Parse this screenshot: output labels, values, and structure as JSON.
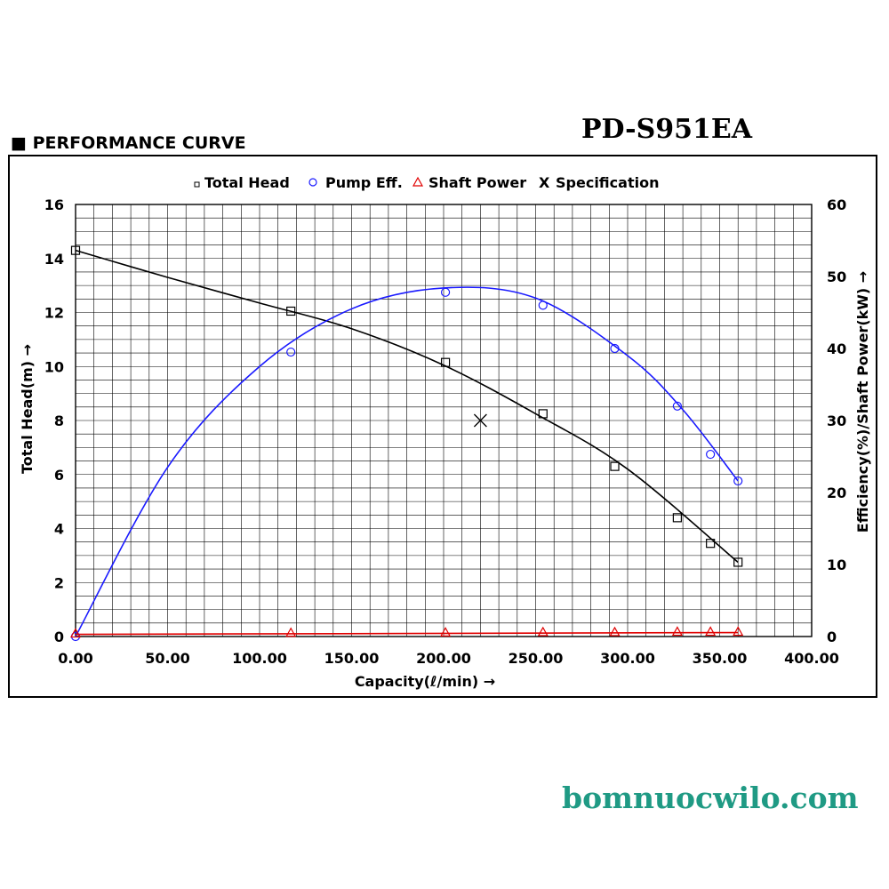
{
  "page": {
    "model": "PD-S951EA",
    "heading": "■ PERFORMANCE CURVE",
    "watermark": "bomnuocwilo.com"
  },
  "chart_data": {
    "type": "line",
    "xlabel": "Capacity(ℓ/min) →",
    "ylabel_left": "Total Head(m) →",
    "ylabel_right": "Efficiency(%)/Shaft Power(kW) →",
    "xlim": [
      0,
      400
    ],
    "ylim_left": [
      0,
      16
    ],
    "ylim_right": [
      0,
      60
    ],
    "x_ticks": [
      "0.00",
      "50.00",
      "100.00",
      "150.00",
      "200.00",
      "250.00",
      "300.00",
      "350.00",
      "400.00"
    ],
    "y_left_ticks": [
      "0",
      "2",
      "4",
      "6",
      "8",
      "10",
      "12",
      "14",
      "16"
    ],
    "y_right_ticks": [
      "0",
      "10",
      "20",
      "30",
      "40",
      "50",
      "60"
    ],
    "grid": true,
    "legend_position": "top",
    "legend": [
      "Total Head",
      "Pump Eff.",
      "Shaft Power",
      "Specification"
    ],
    "series": [
      {
        "name": "Total Head",
        "axis": "left",
        "color": "#000000",
        "marker": "square",
        "x": [
          0,
          117,
          201,
          254,
          293,
          327,
          345,
          360
        ],
        "y": [
          14.3,
          12.05,
          10.15,
          8.25,
          6.3,
          4.4,
          3.45,
          2.75
        ],
        "curve_x": [
          0,
          50,
          100,
          150,
          200,
          250,
          300,
          360
        ],
        "curve_y": [
          14.3,
          13.3,
          12.35,
          11.4,
          10.05,
          8.25,
          6.2,
          2.75
        ]
      },
      {
        "name": "Pump Eff.",
        "axis": "right",
        "color": "#1a1aff",
        "marker": "circle",
        "x": [
          0,
          117,
          201,
          254,
          293,
          327,
          345,
          360
        ],
        "y": [
          0,
          39.5,
          47.8,
          46.0,
          40.0,
          32.0,
          25.3,
          21.6
        ],
        "curve_x": [
          0,
          50,
          100,
          150,
          200,
          250,
          300,
          330,
          360
        ],
        "curve_y": [
          0,
          23.5,
          37.5,
          45.5,
          48.4,
          47.0,
          39.0,
          31.5,
          21.6
        ]
      },
      {
        "name": "Shaft Power",
        "axis": "right",
        "color": "#e00000",
        "marker": "triangle",
        "x": [
          0,
          117,
          201,
          254,
          293,
          327,
          345,
          360
        ],
        "y": [
          0.3,
          0.4,
          0.45,
          0.5,
          0.5,
          0.55,
          0.55,
          0.55
        ],
        "curve_x": [
          0,
          360
        ],
        "curve_y": [
          0.3,
          0.55
        ]
      }
    ],
    "specification": {
      "x": 220,
      "y": 8,
      "axis": "left",
      "marker": "X"
    }
  }
}
